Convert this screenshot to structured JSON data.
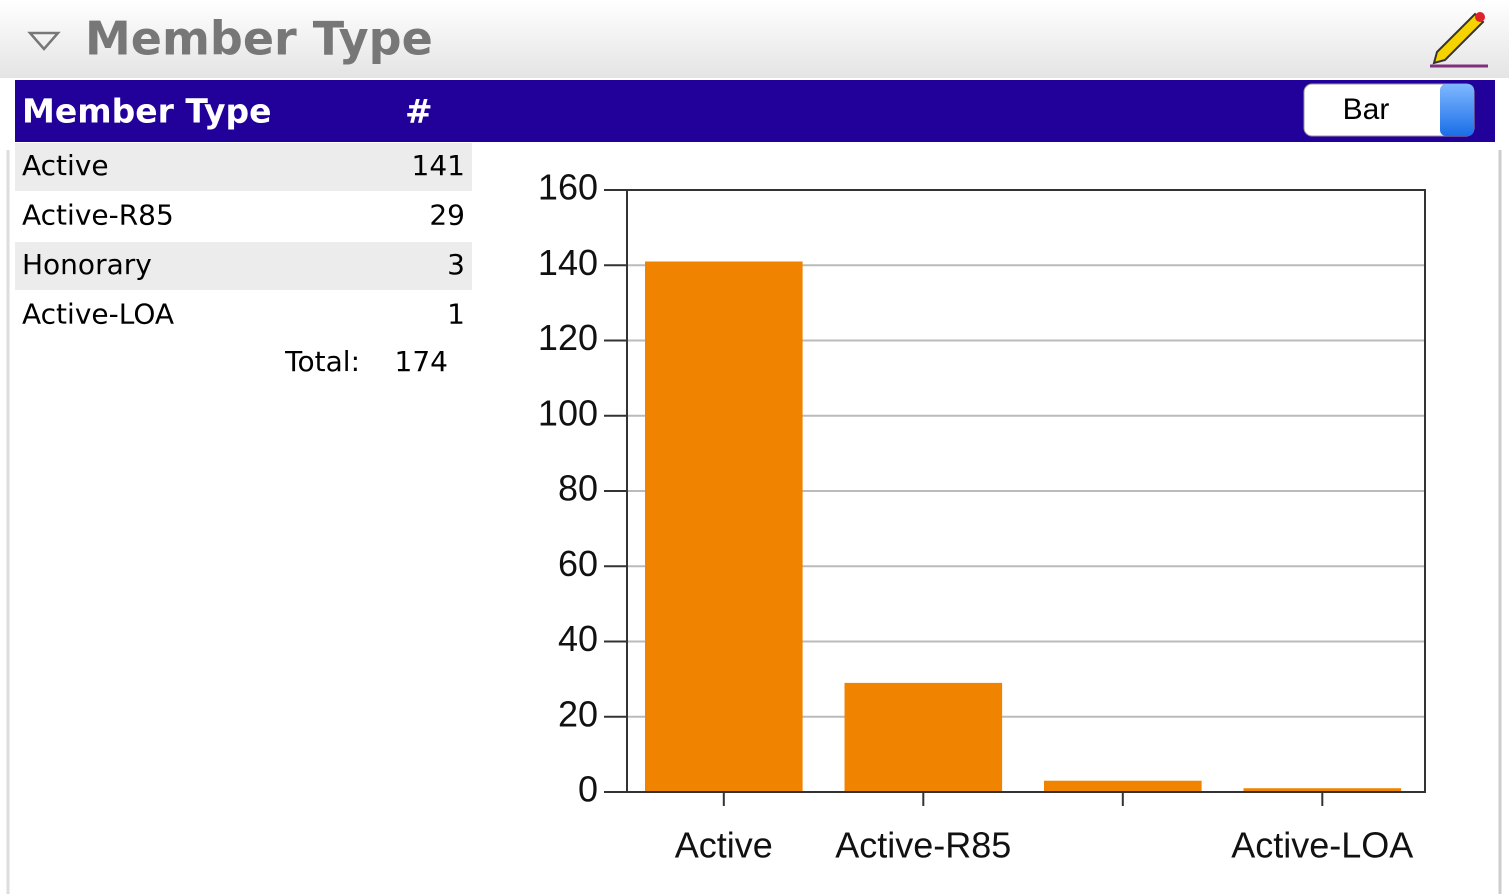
{
  "header": {
    "title": "Member Type"
  },
  "table": {
    "columns": [
      "Member Type",
      "#"
    ],
    "rows": [
      [
        "Active",
        141
      ],
      [
        "Active-R85",
        29
      ],
      [
        "Honorary",
        3
      ],
      [
        "Active-LOA",
        1
      ]
    ],
    "total": {
      "label": "Total:",
      "value": 174
    }
  },
  "chart_control": {
    "selected": "Bar"
  },
  "chart_data": {
    "type": "bar",
    "categories": [
      "Active",
      "Active-R85",
      null,
      "Active-LOA"
    ],
    "values": [
      141,
      29,
      3,
      1
    ],
    "color": "#f08400",
    "ylim": [
      0,
      160
    ],
    "yticks": [
      0,
      20,
      40,
      60,
      80,
      100,
      120,
      140,
      160
    ],
    "grid": true
  }
}
